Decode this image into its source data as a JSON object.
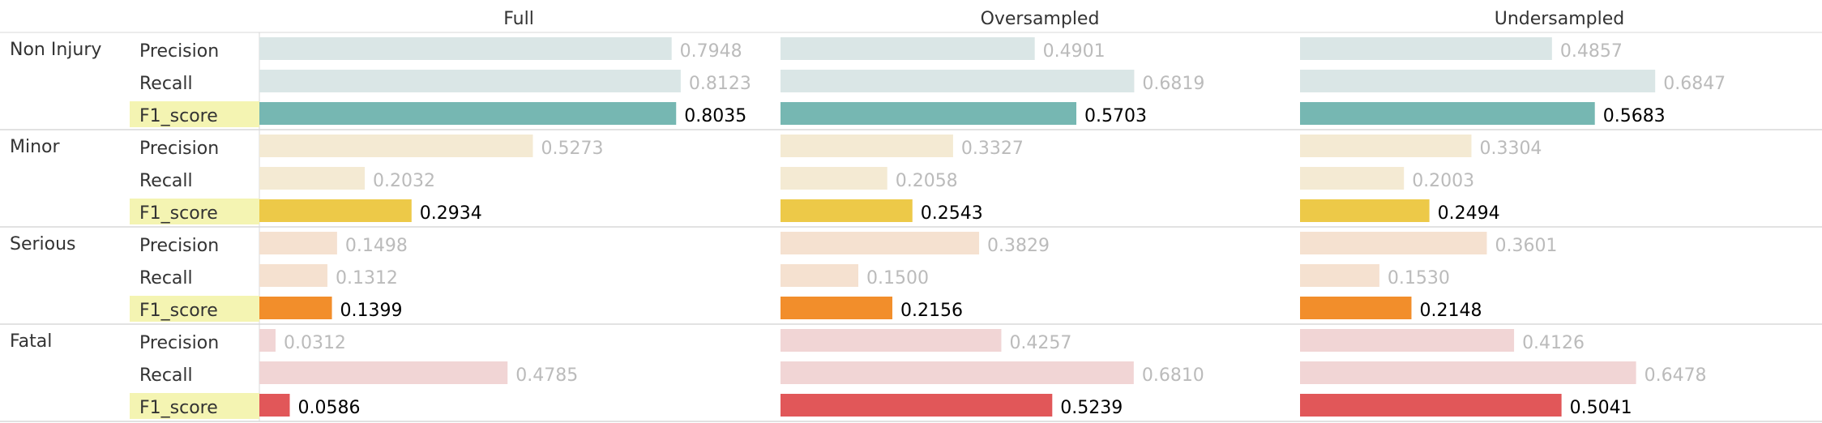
{
  "chart_data": {
    "type": "bar",
    "orientation": "horizontal",
    "columns": [
      "Full",
      "Oversampled",
      "Undersampled"
    ],
    "metrics": [
      "Precision",
      "Recall",
      "F1_score"
    ],
    "highlighted_metric": "F1_score",
    "xlim": [
      0,
      1
    ],
    "groups": [
      {
        "name": "Non Injury",
        "color": "#76b7b2",
        "light_color": "#dae6e6",
        "values": {
          "Full": {
            "Precision": 0.7948,
            "Recall": 0.8123,
            "F1_score": 0.8035
          },
          "Oversampled": {
            "Precision": 0.4901,
            "Recall": 0.6819,
            "F1_score": 0.5703
          },
          "Undersampled": {
            "Precision": 0.4857,
            "Recall": 0.6847,
            "F1_score": 0.5683
          }
        }
      },
      {
        "name": "Minor",
        "color": "#edc948",
        "light_color": "#f4ead3",
        "values": {
          "Full": {
            "Precision": 0.5273,
            "Recall": 0.2032,
            "F1_score": 0.2934
          },
          "Oversampled": {
            "Precision": 0.3327,
            "Recall": 0.2058,
            "F1_score": 0.2543
          },
          "Undersampled": {
            "Precision": 0.3304,
            "Recall": 0.2003,
            "F1_score": 0.2494
          }
        }
      },
      {
        "name": "Serious",
        "color": "#f28e2b",
        "light_color": "#f5e1d0",
        "values": {
          "Full": {
            "Precision": 0.1498,
            "Recall": 0.1312,
            "F1_score": 0.1399
          },
          "Oversampled": {
            "Precision": 0.3829,
            "Recall": 0.15,
            "F1_score": 0.2156
          },
          "Undersampled": {
            "Precision": 0.3601,
            "Recall": 0.153,
            "F1_score": 0.2148
          }
        }
      },
      {
        "name": "Fatal",
        "color": "#e15759",
        "light_color": "#f1d5d5",
        "values": {
          "Full": {
            "Precision": 0.0312,
            "Recall": 0.4785,
            "F1_score": 0.0586
          },
          "Oversampled": {
            "Precision": 0.4257,
            "Recall": 0.681,
            "F1_score": 0.5239
          },
          "Undersampled": {
            "Precision": 0.4126,
            "Recall": 0.6478,
            "F1_score": 0.5041
          }
        }
      }
    ],
    "colors": {
      "highlight_background": "#f4f4b2",
      "label_text": "#333333",
      "value_text_dim": "#bbbbbb",
      "value_text": "#000000",
      "grid_lines": "#d8d8d8"
    }
  }
}
